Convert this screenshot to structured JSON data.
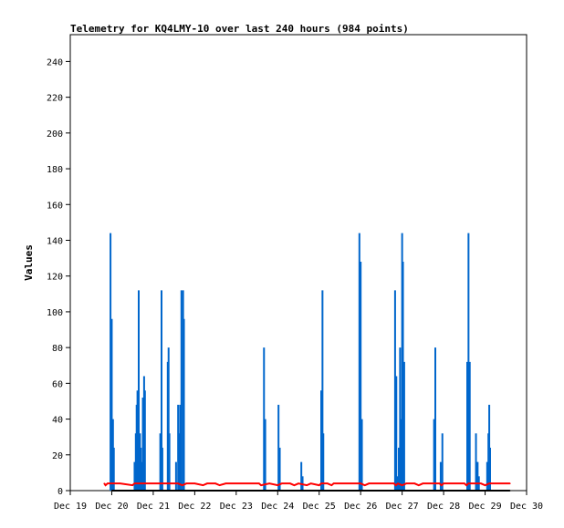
{
  "chart_data": {
    "type": "line",
    "title": "Telemetry for KQ4LMY-10 over last 240 hours (984 points)",
    "ylabel": "Values",
    "xlabel": "",
    "x_tick_labels": [
      "Dec 19",
      "Dec 20",
      "Dec 21",
      "Dec 22",
      "Dec 23",
      "Dec 24",
      "Dec 25",
      "Dec 26",
      "Dec 27",
      "Dec 28",
      "Dec 29",
      "Dec 30"
    ],
    "xlim": [
      19,
      30
    ],
    "ylim": [
      0,
      255
    ],
    "y_ticks": [
      0,
      20,
      40,
      60,
      80,
      100,
      120,
      140,
      160,
      180,
      200,
      220,
      240
    ],
    "grid": false,
    "series": [
      {
        "color": "#0066cc",
        "style": "spikes",
        "points": [
          [
            19.97,
            144
          ],
          [
            20.0,
            96
          ],
          [
            20.03,
            40
          ],
          [
            20.05,
            24
          ],
          [
            20.55,
            16
          ],
          [
            20.58,
            32
          ],
          [
            20.6,
            48
          ],
          [
            20.62,
            56
          ],
          [
            20.65,
            112
          ],
          [
            20.68,
            32
          ],
          [
            20.7,
            24
          ],
          [
            20.72,
            16
          ],
          [
            20.75,
            52
          ],
          [
            20.78,
            64
          ],
          [
            20.8,
            56
          ],
          [
            21.17,
            32
          ],
          [
            21.2,
            112
          ],
          [
            21.22,
            24
          ],
          [
            21.35,
            72
          ],
          [
            21.37,
            80
          ],
          [
            21.39,
            32
          ],
          [
            21.55,
            16
          ],
          [
            21.6,
            48
          ],
          [
            21.63,
            32
          ],
          [
            21.65,
            48
          ],
          [
            21.68,
            112
          ],
          [
            21.72,
            112
          ],
          [
            21.74,
            96
          ],
          [
            23.67,
            80
          ],
          [
            23.7,
            40
          ],
          [
            24.02,
            48
          ],
          [
            24.05,
            24
          ],
          [
            24.57,
            16
          ],
          [
            24.6,
            8
          ],
          [
            25.05,
            56
          ],
          [
            25.08,
            112
          ],
          [
            25.1,
            32
          ],
          [
            25.97,
            144
          ],
          [
            26.0,
            128
          ],
          [
            26.03,
            40
          ],
          [
            26.83,
            112
          ],
          [
            26.86,
            64
          ],
          [
            26.88,
            8
          ],
          [
            26.92,
            24
          ],
          [
            26.95,
            80
          ],
          [
            26.97,
            40
          ],
          [
            27.0,
            144
          ],
          [
            27.02,
            128
          ],
          [
            27.05,
            72
          ],
          [
            27.77,
            40
          ],
          [
            27.8,
            80
          ],
          [
            27.93,
            16
          ],
          [
            27.97,
            32
          ],
          [
            28.57,
            72
          ],
          [
            28.6,
            144
          ],
          [
            28.63,
            72
          ],
          [
            28.78,
            32
          ],
          [
            28.8,
            16
          ],
          [
            28.82,
            16
          ],
          [
            28.85,
            8
          ],
          [
            29.05,
            16
          ],
          [
            29.08,
            32
          ],
          [
            29.1,
            48
          ],
          [
            29.12,
            24
          ]
        ]
      },
      {
        "color": "#ff0000",
        "style": "line",
        "points": [
          [
            19.82,
            4
          ],
          [
            19.85,
            3
          ],
          [
            19.9,
            4
          ],
          [
            20.2,
            4
          ],
          [
            20.5,
            3
          ],
          [
            20.55,
            4
          ],
          [
            21.6,
            4
          ],
          [
            21.7,
            3
          ],
          [
            21.8,
            4
          ],
          [
            22.0,
            4
          ],
          [
            22.2,
            3
          ],
          [
            22.3,
            4
          ],
          [
            22.5,
            4
          ],
          [
            22.6,
            3
          ],
          [
            22.75,
            4
          ],
          [
            23.55,
            4
          ],
          [
            23.6,
            3
          ],
          [
            23.8,
            4
          ],
          [
            24.0,
            3
          ],
          [
            24.1,
            4
          ],
          [
            24.3,
            4
          ],
          [
            24.4,
            3
          ],
          [
            24.5,
            4
          ],
          [
            24.7,
            3
          ],
          [
            24.8,
            4
          ],
          [
            25.0,
            3
          ],
          [
            25.05,
            4
          ],
          [
            25.2,
            4
          ],
          [
            25.3,
            3
          ],
          [
            25.35,
            4
          ],
          [
            26.0,
            4
          ],
          [
            26.1,
            3
          ],
          [
            26.2,
            4
          ],
          [
            26.8,
            4
          ],
          [
            26.85,
            3
          ],
          [
            26.9,
            4
          ],
          [
            27.0,
            3
          ],
          [
            27.1,
            4
          ],
          [
            27.3,
            4
          ],
          [
            27.4,
            3
          ],
          [
            27.5,
            4
          ],
          [
            27.9,
            4
          ],
          [
            27.95,
            3
          ],
          [
            28.0,
            4
          ],
          [
            28.5,
            4
          ],
          [
            28.55,
            3
          ],
          [
            28.6,
            4
          ],
          [
            28.9,
            4
          ],
          [
            29.0,
            3
          ],
          [
            29.1,
            4
          ],
          [
            29.5,
            4
          ],
          [
            29.6,
            4
          ]
        ]
      },
      {
        "color": "#000000",
        "style": "line",
        "points": [
          [
            20.0,
            0
          ],
          [
            29.6,
            0
          ]
        ]
      }
    ]
  }
}
